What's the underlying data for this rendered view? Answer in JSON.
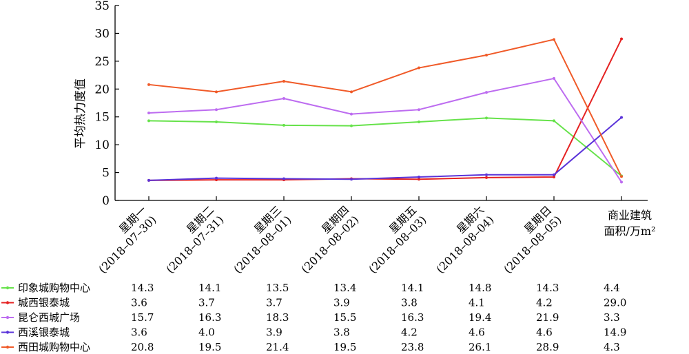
{
  "chart_data": {
    "type": "line",
    "ylabel": "平均热力度值",
    "ylim": [
      0,
      35
    ],
    "yticks": [
      0,
      5,
      10,
      15,
      20,
      25,
      30,
      35
    ],
    "categories": [
      {
        "line1": "星期一",
        "line2": "(2018–07–30)"
      },
      {
        "line1": "星期二",
        "line2": "(2018–07–31)"
      },
      {
        "line1": "星期三",
        "line2": "(2018–08–01)"
      },
      {
        "line1": "星期四",
        "line2": "(2018–08–02)"
      },
      {
        "line1": "星期五",
        "line2": "(2018–08–03)"
      },
      {
        "line1": "星期六",
        "line2": "(2018–08–04)"
      },
      {
        "line1": "星期日",
        "line2": "(2018–08–05)"
      },
      {
        "line1": "商业建筑",
        "line2": "面积/万m²"
      }
    ],
    "series": [
      {
        "name": "印象城购物中心",
        "color": "#66e24a",
        "values": [
          14.3,
          14.1,
          13.5,
          13.4,
          14.1,
          14.8,
          14.3,
          4.4
        ]
      },
      {
        "name": "城西银泰城",
        "color": "#e52222",
        "values": [
          3.6,
          3.7,
          3.7,
          3.9,
          3.8,
          4.1,
          4.2,
          29.0
        ]
      },
      {
        "name": "昆仑西城广场",
        "color": "#bd6cf0",
        "values": [
          15.7,
          16.3,
          18.3,
          15.5,
          16.3,
          19.4,
          21.9,
          3.3
        ]
      },
      {
        "name": "西溪银泰城",
        "color": "#5a33d9",
        "values": [
          3.6,
          4.0,
          3.9,
          3.8,
          4.2,
          4.6,
          4.6,
          14.9
        ]
      },
      {
        "name": "西田城购物中心",
        "color": "#f05a28",
        "values": [
          20.8,
          19.5,
          21.4,
          19.5,
          23.8,
          26.1,
          28.9,
          4.3
        ]
      }
    ]
  }
}
